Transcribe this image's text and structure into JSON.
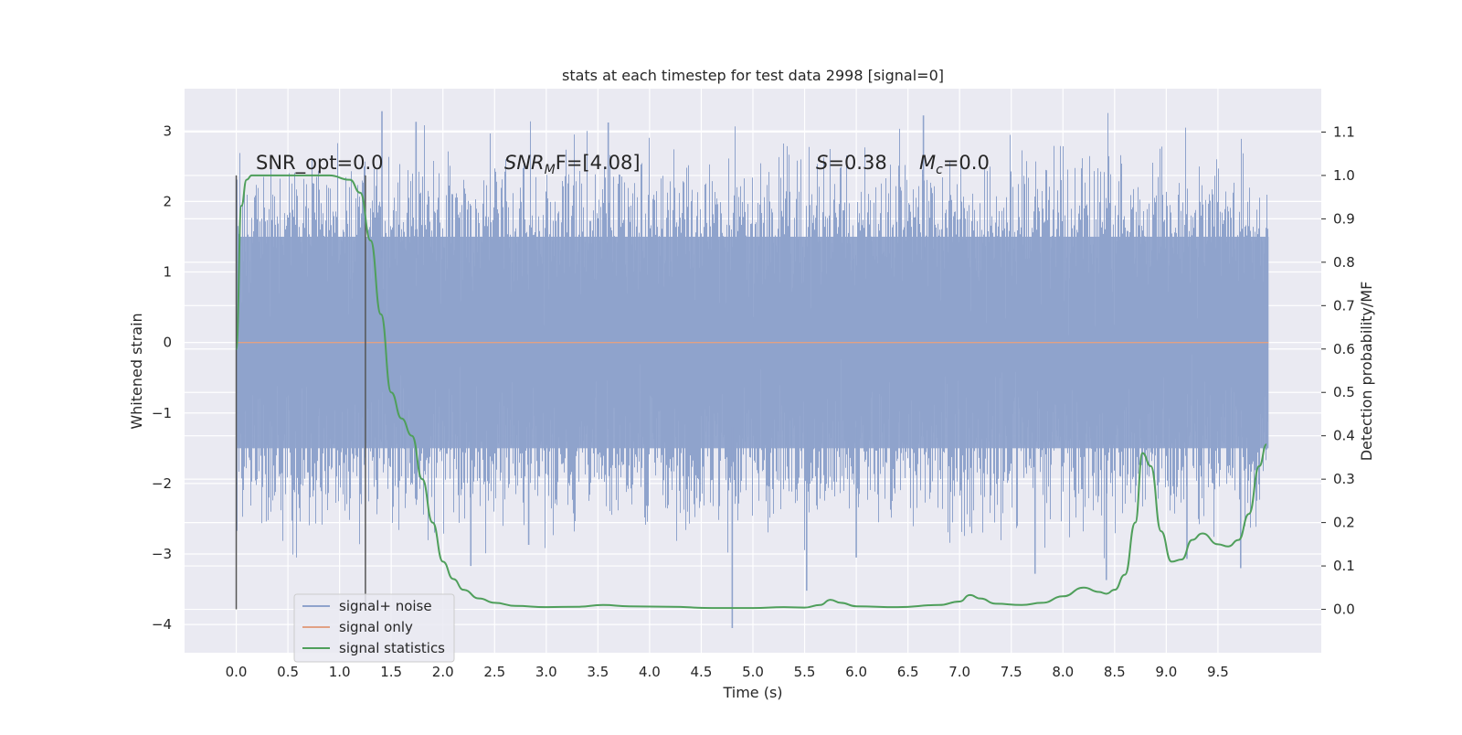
{
  "chart_data": {
    "type": "line",
    "title": "stats at each timestep for test data 2998 [signal=0]",
    "xlabel": "Time (s)",
    "ylabel": "Whitened strain",
    "y2label": "Detection probability/MF",
    "xlim": [
      -0.5,
      10.5
    ],
    "ylim": [
      -4.4,
      3.6
    ],
    "y2lim": [
      -0.1,
      1.2
    ],
    "xticks": [
      "0.0",
      "0.5",
      "1.0",
      "1.5",
      "2.0",
      "2.5",
      "3.0",
      "3.5",
      "4.0",
      "4.5",
      "5.0",
      "5.5",
      "6.0",
      "6.5",
      "7.0",
      "7.5",
      "8.0",
      "8.5",
      "9.0",
      "9.5"
    ],
    "yticks": [
      "3",
      "2",
      "1",
      "0",
      "−1",
      "−2",
      "−3",
      "−4"
    ],
    "y2ticks": [
      "1.1",
      "1.0",
      "0.9",
      "0.8",
      "0.7",
      "0.6",
      "0.5",
      "0.4",
      "0.3",
      "0.2",
      "0.1",
      "0.0"
    ],
    "grid": true,
    "legend_position": "lower-left",
    "annotations": {
      "snr_opt": "SNR_opt=0.0",
      "snr_mf_sym": "SNR",
      "snr_mf_sub": "M",
      "snr_mf_tail": "F=[4.08]",
      "s_sym": "S",
      "s_val": "=0.38",
      "mc_sym": "M",
      "mc_sub": "c",
      "mc_val": "=0.0"
    },
    "vertical_markers": [
      0.0,
      1.25
    ],
    "series": [
      {
        "name": "signal+ noise",
        "color": "#8fa3cc",
        "x_range": [
          0.0,
          9.99
        ],
        "typical_envelope": [
          -1.5,
          1.5
        ],
        "notable_extrema": [
          {
            "x": 1.41,
            "y": 3.28
          },
          {
            "x": 1.74,
            "y": 3.13
          },
          {
            "x": 3.6,
            "y": 3.12
          },
          {
            "x": 6.65,
            "y": 3.22
          },
          {
            "x": 4.8,
            "y": -4.05
          },
          {
            "x": 5.52,
            "y": -3.52
          },
          {
            "x": 8.42,
            "y": -3.37
          },
          {
            "x": 9.2,
            "y": -3.07
          },
          {
            "x": 9.72,
            "y": -3.2
          },
          {
            "x": 7.73,
            "y": -3.28
          },
          {
            "x": 2.27,
            "y": -3.17
          },
          {
            "x": 2.83,
            "y": -2.87
          },
          {
            "x": 6.0,
            "y": -3.05
          }
        ]
      },
      {
        "name": "signal only",
        "color": "#e1a184",
        "x": [
          0.0,
          9.99
        ],
        "y": [
          0.0,
          0.0
        ]
      },
      {
        "name": "signal statistics",
        "color": "#4f9f5b",
        "axis": "right",
        "x": [
          0.0,
          0.05,
          0.1,
          0.15,
          0.25,
          0.5,
          0.9,
          1.1,
          1.2,
          1.3,
          1.4,
          1.5,
          1.6,
          1.7,
          1.8,
          1.9,
          2.0,
          2.1,
          2.2,
          2.35,
          2.5,
          2.7,
          3.0,
          3.3,
          3.55,
          3.8,
          4.2,
          4.6,
          5.0,
          5.3,
          5.5,
          5.65,
          5.75,
          5.85,
          6.0,
          6.4,
          6.8,
          7.0,
          7.1,
          7.2,
          7.35,
          7.6,
          7.8,
          8.0,
          8.2,
          8.35,
          8.42,
          8.5,
          8.6,
          8.7,
          8.77,
          8.85,
          8.95,
          9.05,
          9.15,
          9.25,
          9.35,
          9.5,
          9.6,
          9.7,
          9.8,
          9.9,
          9.97
        ],
        "y": [
          0.6,
          0.93,
          0.99,
          1.0,
          1.0,
          1.0,
          1.0,
          0.99,
          0.96,
          0.85,
          0.68,
          0.5,
          0.44,
          0.4,
          0.3,
          0.2,
          0.11,
          0.07,
          0.045,
          0.025,
          0.015,
          0.008,
          0.005,
          0.006,
          0.01,
          0.007,
          0.006,
          0.003,
          0.003,
          0.005,
          0.004,
          0.01,
          0.022,
          0.015,
          0.007,
          0.005,
          0.01,
          0.018,
          0.033,
          0.025,
          0.013,
          0.01,
          0.015,
          0.03,
          0.05,
          0.04,
          0.036,
          0.045,
          0.08,
          0.2,
          0.36,
          0.33,
          0.18,
          0.11,
          0.115,
          0.16,
          0.175,
          0.15,
          0.145,
          0.16,
          0.22,
          0.33,
          0.38
        ]
      }
    ]
  }
}
